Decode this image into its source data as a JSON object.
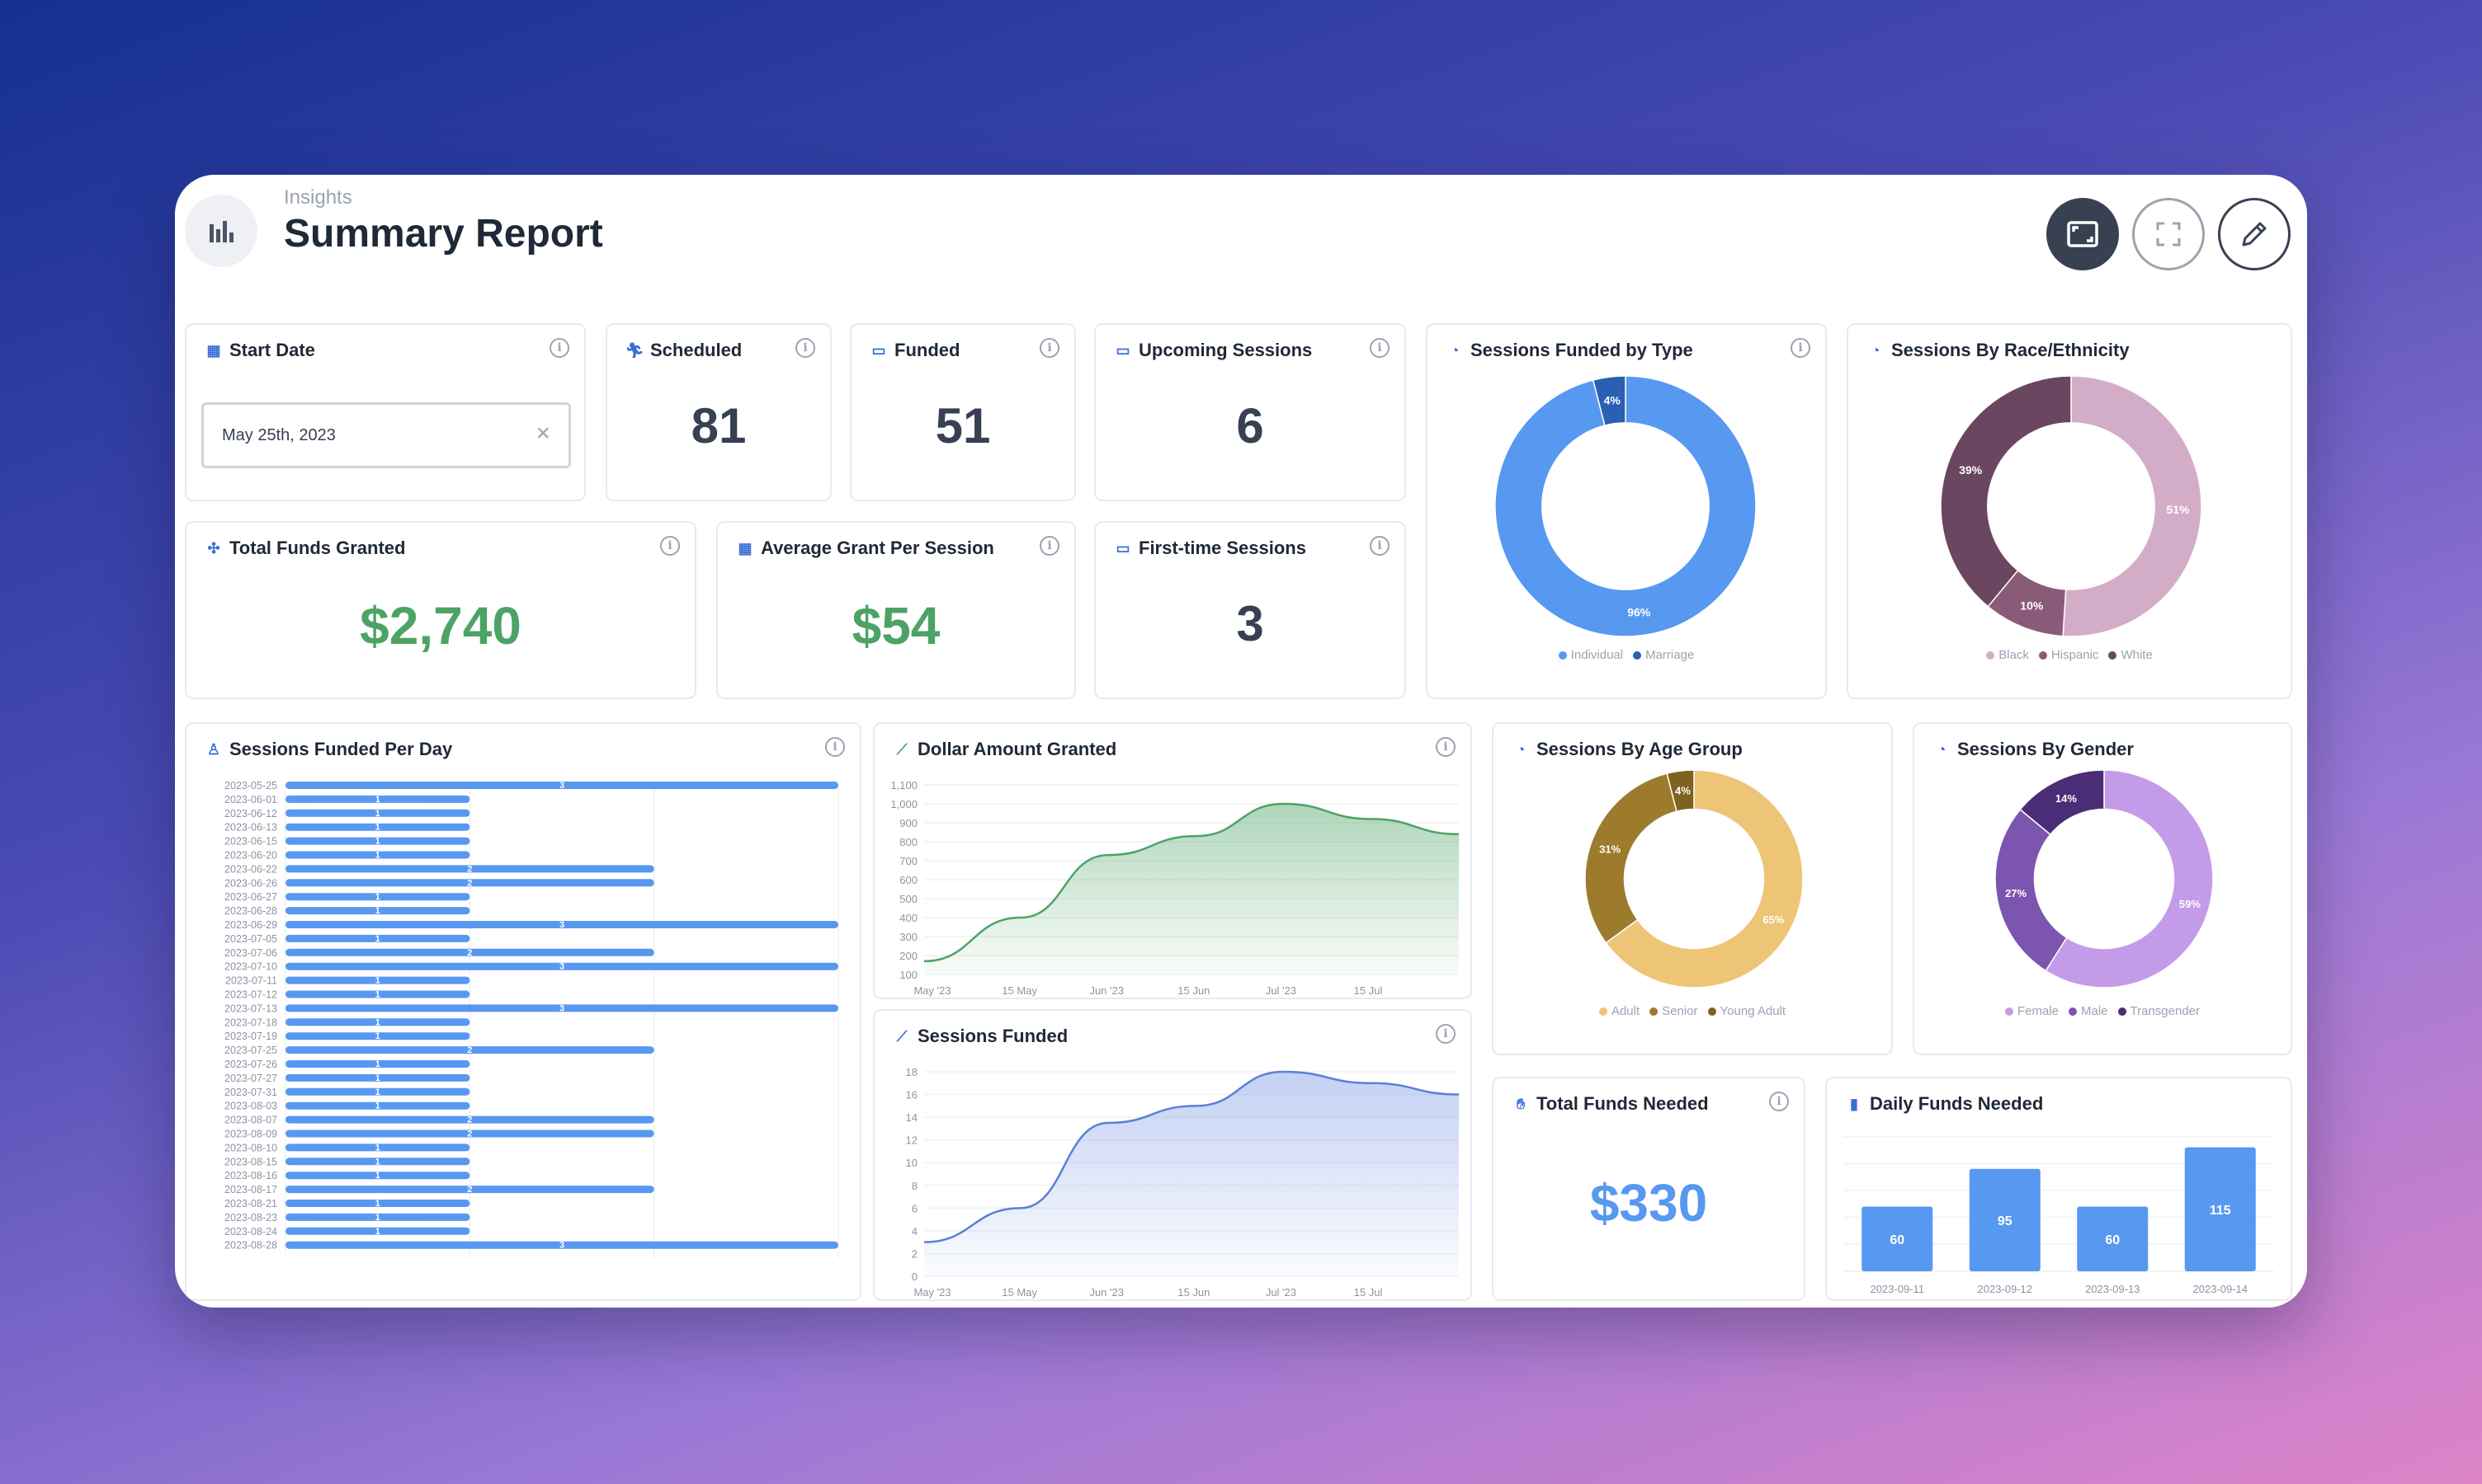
{
  "header": {
    "section": "Insights",
    "title": "Summary Report",
    "app_icon": "bar-chart-icon",
    "buttons": [
      {
        "name": "fit-view-button",
        "icon": "screen-icon"
      },
      {
        "name": "fullscreen-button",
        "icon": "expand-icon"
      },
      {
        "name": "edit-button",
        "icon": "pencil-icon"
      }
    ]
  },
  "colors": {
    "blue": "#5798f0",
    "dark_blue": "#2b5fb4",
    "green": "#4da365",
    "dark_text": "#374151",
    "race": [
      "#d3adc8",
      "#8a5b78",
      "#6b4660"
    ],
    "age": [
      "#eec477",
      "#9d7b2d",
      "#7e6320"
    ],
    "gender": [
      "#c49be8",
      "#7c55b0",
      "#4b2c76"
    ]
  },
  "cards": {
    "start_date": {
      "title": "Start Date",
      "icon": "calendar-icon",
      "value": "May 25th, 2023"
    },
    "scheduled": {
      "title": "Scheduled",
      "icon": "runner-icon",
      "value": "81"
    },
    "funded": {
      "title": "Funded",
      "icon": "easel-icon",
      "value": "51"
    },
    "upcoming": {
      "title": "Upcoming Sessions",
      "icon": "easel-icon",
      "value": "6"
    },
    "total_funds": {
      "title": "Total Funds Granted",
      "icon": "coins-icon",
      "value": "$2,740"
    },
    "avg_grant": {
      "title": "Average Grant Per Session",
      "icon": "calculator-icon",
      "value": "$54"
    },
    "first_time": {
      "title": "First-time Sessions",
      "icon": "easel-icon",
      "value": "3"
    },
    "funds_needed": {
      "title": "Total Funds Needed",
      "icon": "hand-icon",
      "value": "$330"
    }
  },
  "charts": {
    "by_type": {
      "title": "Sessions Funded by Type",
      "icon": "pie-icon"
    },
    "by_race": {
      "title": "Sessions By Race/Ethnicity",
      "icon": "pie-icon"
    },
    "per_day": {
      "title": "Sessions Funded Per Day",
      "icon": "person-icon"
    },
    "dollar": {
      "title": "Dollar Amount Granted",
      "icon": "trend-icon"
    },
    "by_age": {
      "title": "Sessions By Age Group",
      "icon": "pie-icon"
    },
    "by_gender": {
      "title": "Sessions By Gender",
      "icon": "pie-icon"
    },
    "sessions_funded": {
      "title": "Sessions Funded",
      "icon": "trend-icon"
    },
    "daily_needed": {
      "title": "Daily Funds Needed",
      "icon": "bar-icon"
    }
  },
  "chart_data": [
    {
      "id": "by_type",
      "type": "pie",
      "donut": true,
      "labels": [
        "Individual",
        "Marriage"
      ],
      "values": [
        96,
        4
      ],
      "value_labels": [
        "96%",
        "4%"
      ],
      "legend": "bottom"
    },
    {
      "id": "by_race",
      "type": "pie",
      "donut": true,
      "labels": [
        "Black",
        "Hispanic",
        "White"
      ],
      "values": [
        51,
        10,
        39
      ],
      "value_labels": [
        "51%",
        "10%",
        "39%"
      ],
      "legend": "bottom"
    },
    {
      "id": "per_day",
      "type": "bar",
      "orientation": "horizontal",
      "categories": [
        "2023-05-25",
        "2023-06-01",
        "2023-06-12",
        "2023-06-13",
        "2023-06-15",
        "2023-06-20",
        "2023-06-22",
        "2023-06-26",
        "2023-06-27",
        "2023-06-28",
        "2023-06-29",
        "2023-07-05",
        "2023-07-06",
        "2023-07-10",
        "2023-07-11",
        "2023-07-12",
        "2023-07-13",
        "2023-07-18",
        "2023-07-19",
        "2023-07-25",
        "2023-07-26",
        "2023-07-27",
        "2023-07-31",
        "2023-08-03",
        "2023-08-07",
        "2023-08-09",
        "2023-08-10",
        "2023-08-15",
        "2023-08-16",
        "2023-08-17",
        "2023-08-21",
        "2023-08-23",
        "2023-08-24",
        "2023-08-28"
      ],
      "values": [
        3,
        1,
        1,
        1,
        1,
        1,
        2,
        2,
        1,
        1,
        3,
        1,
        2,
        3,
        1,
        1,
        3,
        1,
        1,
        2,
        1,
        1,
        1,
        1,
        2,
        2,
        1,
        1,
        1,
        2,
        1,
        1,
        1,
        3
      ],
      "xlim": [
        0,
        3
      ]
    },
    {
      "id": "dollar",
      "type": "area",
      "x_ticks": [
        "May '23",
        "15 May",
        "Jun '23",
        "15 Jun",
        "Jul '23",
        "15 Jul"
      ],
      "x": [
        "2023-05-25",
        "2023-06-05",
        "2023-06-15",
        "2023-06-25",
        "2023-07-05",
        "2023-07-15",
        "2023-07-25"
      ],
      "values": [
        170,
        400,
        730,
        830,
        1000,
        920,
        840
      ],
      "y_ticks": [
        "1,100",
        "1,000",
        "900",
        "800",
        "700",
        "600",
        "500",
        "400",
        "300",
        "200",
        "100"
      ],
      "ylim": [
        100,
        1100
      ],
      "grid": true
    },
    {
      "id": "by_age",
      "type": "pie",
      "donut": true,
      "labels": [
        "Adult",
        "Senior",
        "Young Adult"
      ],
      "values": [
        65,
        31,
        4
      ],
      "value_labels": [
        "65%",
        "31%",
        "4%"
      ],
      "legend": "bottom"
    },
    {
      "id": "by_gender",
      "type": "pie",
      "donut": true,
      "labels": [
        "Female",
        "Male",
        "Transgender"
      ],
      "values": [
        59,
        27,
        14
      ],
      "value_labels": [
        "59%",
        "27%",
        "14%"
      ],
      "legend": "bottom"
    },
    {
      "id": "sessions_funded",
      "type": "area",
      "x_ticks": [
        "May '23",
        "15 May",
        "Jun '23",
        "15 Jun",
        "Jul '23",
        "15 Jul"
      ],
      "x": [
        "2023-05-25",
        "2023-06-05",
        "2023-06-15",
        "2023-06-25",
        "2023-07-05",
        "2023-07-15",
        "2023-07-25"
      ],
      "values": [
        3,
        6,
        13.5,
        15,
        18,
        17,
        16
      ],
      "y_ticks": [
        "18",
        "16",
        "14",
        "12",
        "10",
        "8",
        "6",
        "4",
        "2",
        "0"
      ],
      "ylim": [
        0,
        18
      ],
      "grid": true
    },
    {
      "id": "daily_needed",
      "type": "bar",
      "categories": [
        "2023-09-11",
        "2023-09-12",
        "2023-09-13",
        "2023-09-14"
      ],
      "values": [
        60,
        95,
        60,
        115
      ],
      "value_labels": [
        "60",
        "95",
        "60",
        "115"
      ],
      "ylim": [
        0,
        130
      ]
    }
  ]
}
